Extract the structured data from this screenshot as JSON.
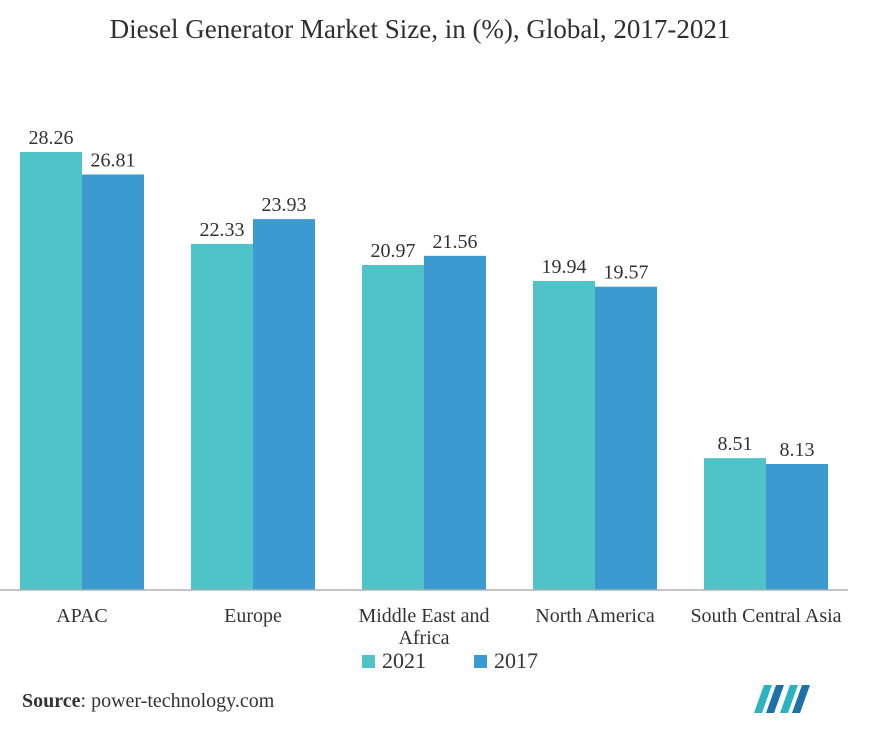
{
  "title": "Diesel Generator Market Size, in (%), Global, 2017-2021",
  "source": {
    "label": "Source",
    "text": ": power-technology.com"
  },
  "logo": {
    "icon": "mordor-intelligence-logo-icon"
  },
  "colors": {
    "series_2021": "#4fc3c8",
    "series_2017": "#3b9bd0",
    "axis": "#b0b0b0"
  },
  "chart_data": {
    "type": "bar",
    "title": "Diesel Generator Market Size, in (%), Global, 2017-2021",
    "categories": [
      "APAC",
      "Europe",
      "Middle East and Africa",
      "North America",
      "South Central Asia"
    ],
    "category_lines": [
      [
        "APAC"
      ],
      [
        "Europe"
      ],
      [
        "Middle East and",
        "Africa"
      ],
      [
        "North America"
      ],
      [
        "South Central Asia"
      ]
    ],
    "series": [
      {
        "name": "2021",
        "values": [
          28.26,
          22.33,
          20.97,
          19.94,
          8.51
        ]
      },
      {
        "name": "2017",
        "values": [
          26.81,
          23.93,
          21.56,
          19.57,
          8.13
        ]
      }
    ],
    "value_labels": [
      [
        "28.26",
        "22.33",
        "20.97",
        "19.94",
        "8.51"
      ],
      [
        "26.81",
        "23.93",
        "21.56",
        "19.57",
        "8.13"
      ]
    ],
    "xlabel": "",
    "ylabel": "",
    "ylim": [
      0,
      28.26
    ],
    "grid": false,
    "legend": "bottom"
  }
}
